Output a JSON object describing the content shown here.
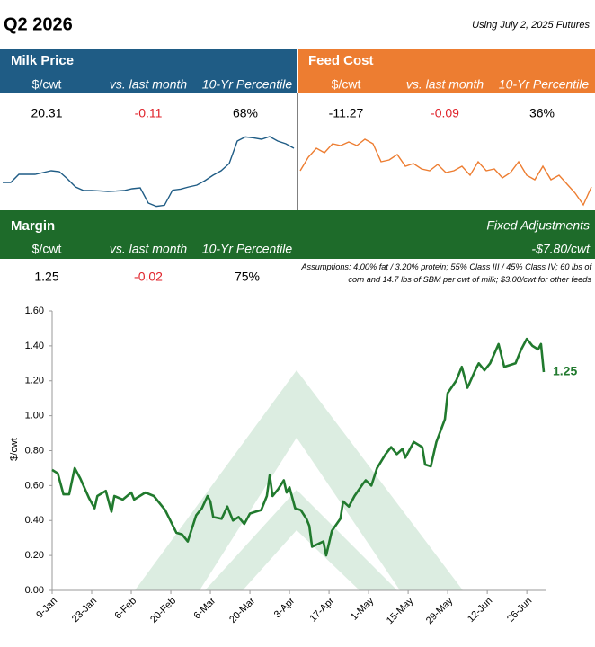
{
  "header": {
    "title": "Q2 2026",
    "note": "Using July 2, 2025 Futures"
  },
  "milk": {
    "title": "Milk Price",
    "columns": [
      "$/cwt",
      "vs. last month",
      "10-Yr Percentile"
    ],
    "values": [
      "20.31",
      "-0.11",
      "68%"
    ],
    "sparkline": {
      "type": "line",
      "color": "#1f5c85",
      "ylim": [
        16.91,
        21.51
      ],
      "values": [
        18.41,
        18.41,
        18.86,
        18.86,
        18.86,
        18.96,
        19.06,
        19.01,
        18.61,
        18.16,
        17.96,
        17.96,
        17.94,
        17.91,
        17.93,
        17.96,
        18.06,
        18.11,
        17.26,
        17.08,
        17.14,
        17.98,
        18.04,
        18.16,
        18.26,
        18.51,
        18.81,
        19.06,
        19.46,
        20.71,
        20.94,
        20.89,
        20.81,
        20.96,
        20.71,
        20.56,
        20.31
      ]
    }
  },
  "feed": {
    "title": "Feed Cost",
    "columns": [
      "$/cwt",
      "vs. last month",
      "10-Yr Percentile"
    ],
    "values": [
      "-11.27",
      "-0.09",
      "36%"
    ],
    "sparkline": {
      "type": "line",
      "color": "#ed7d31",
      "ylim": [
        -12.27,
        -8.59
      ],
      "values": [
        -10.55,
        -9.95,
        -9.55,
        -9.75,
        -9.35,
        -9.43,
        -9.27,
        -9.43,
        -9.15,
        -9.35,
        -10.15,
        -10.07,
        -9.83,
        -10.35,
        -10.23,
        -10.47,
        -10.55,
        -10.27,
        -10.63,
        -10.55,
        -10.35,
        -10.75,
        -10.15,
        -10.55,
        -10.47,
        -10.87,
        -10.63,
        -10.15,
        -10.75,
        -10.95,
        -10.35,
        -10.95,
        -10.75,
        -11.15,
        -11.55,
        -12.07,
        -11.27
      ]
    }
  },
  "margin": {
    "title": "Margin",
    "columns": [
      "$/cwt",
      "vs. last month",
      "10-Yr Percentile"
    ],
    "values": [
      "1.25",
      "-0.02",
      "75%"
    ],
    "fixed_label": "Fixed Adjustments",
    "fixed_value": "-$7.80/cwt",
    "assumptions": "Assumptions: 4.00% fat / 3.20% protein; 55% Class III / 45% Class IV; 60 lbs of corn and 14.7 lbs of SBM per cwt of milk; $3.00/cwt for other feeds"
  },
  "chart_data": {
    "type": "line",
    "y_label": "$/cwt",
    "x": [
      "9-Jan",
      "11-Jan",
      "13-Jan",
      "15-Jan",
      "17-Jan",
      "19-Jan",
      "22-Jan",
      "24-Jan",
      "25-Jan",
      "28-Jan",
      "30-Jan",
      "31-Jan",
      "3-Feb",
      "6-Feb",
      "7-Feb",
      "11-Feb",
      "14-Feb",
      "18-Feb",
      "22-Feb",
      "24-Feb",
      "26-Feb",
      "27-Feb",
      "1-Mar",
      "3-Mar",
      "5-Mar",
      "6-Mar",
      "7-Mar",
      "10-Mar",
      "12-Mar",
      "14-Mar",
      "16-Mar",
      "18-Mar",
      "20-Mar",
      "22-Mar",
      "24-Mar",
      "26-Mar",
      "27-Mar",
      "28-Mar",
      "30-Mar",
      "1-Apr",
      "2-Apr",
      "3-Apr",
      "5-Apr",
      "7-Apr",
      "9-Apr",
      "10-Apr",
      "11-Apr",
      "15-Apr",
      "16-Apr",
      "18-Apr",
      "21-Apr",
      "22-Apr",
      "24-Apr",
      "26-Apr",
      "29-Apr",
      "30-Apr",
      "2-May",
      "4-May",
      "7-May",
      "9-May",
      "11-May",
      "13-May",
      "14-May",
      "17-May",
      "20-May",
      "21-May",
      "23-May",
      "25-May",
      "28-May",
      "29-May",
      "1-Jun",
      "3-Jun",
      "5-Jun",
      "8-Jun",
      "9-Jun",
      "11-Jun",
      "13-Jun",
      "16-Jun",
      "18-Jun",
      "22-Jun",
      "24-Jun",
      "26-Jun",
      "28-Jun",
      "30-Jun",
      "1-Jul",
      "2-Jul"
    ],
    "series": [
      {
        "name": "Margin",
        "color": "#217a2e",
        "values": [
          0.69,
          0.67,
          0.55,
          0.55,
          0.7,
          0.64,
          0.53,
          0.47,
          0.54,
          0.57,
          0.45,
          0.54,
          0.52,
          0.56,
          0.52,
          0.56,
          0.54,
          0.46,
          0.33,
          0.32,
          0.28,
          0.33,
          0.43,
          0.47,
          0.54,
          0.51,
          0.42,
          0.41,
          0.48,
          0.4,
          0.42,
          0.38,
          0.44,
          0.45,
          0.46,
          0.54,
          0.66,
          0.54,
          0.58,
          0.63,
          0.56,
          0.59,
          0.47,
          0.46,
          0.41,
          0.37,
          0.25,
          0.28,
          0.2,
          0.34,
          0.41,
          0.51,
          0.48,
          0.54,
          0.61,
          0.63,
          0.6,
          0.7,
          0.78,
          0.82,
          0.78,
          0.81,
          0.76,
          0.85,
          0.82,
          0.72,
          0.71,
          0.85,
          0.98,
          1.13,
          1.2,
          1.28,
          1.16,
          1.27,
          1.3,
          1.26,
          1.3,
          1.41,
          1.28,
          1.3,
          1.38,
          1.44,
          1.4,
          1.38,
          1.41,
          1.25
        ]
      }
    ],
    "xlim": [
      "9-Jan",
      "2-Jul"
    ],
    "xticks": [
      "9-Jan",
      "23-Jan",
      "6-Feb",
      "20-Feb",
      "6-Mar",
      "20-Mar",
      "3-Apr",
      "17-Apr",
      "1-May",
      "15-May",
      "29-May",
      "12-Jun",
      "26-Jun"
    ],
    "ylim": [
      0,
      1.6
    ],
    "yticks": [
      {
        "value": 0,
        "label": "0.00"
      },
      {
        "value": 0.2,
        "label": "0.20"
      },
      {
        "value": 0.4,
        "label": "0.40"
      },
      {
        "value": 0.6,
        "label": "0.60"
      },
      {
        "value": 0.8,
        "label": "0.80"
      },
      {
        "value": 1,
        "label": "1.00"
      },
      {
        "value": 1.2,
        "label": "1.20"
      },
      {
        "value": 1.4,
        "label": "1.40"
      },
      {
        "value": 1.6,
        "label": "1.60"
      }
    ],
    "grid": false
  }
}
